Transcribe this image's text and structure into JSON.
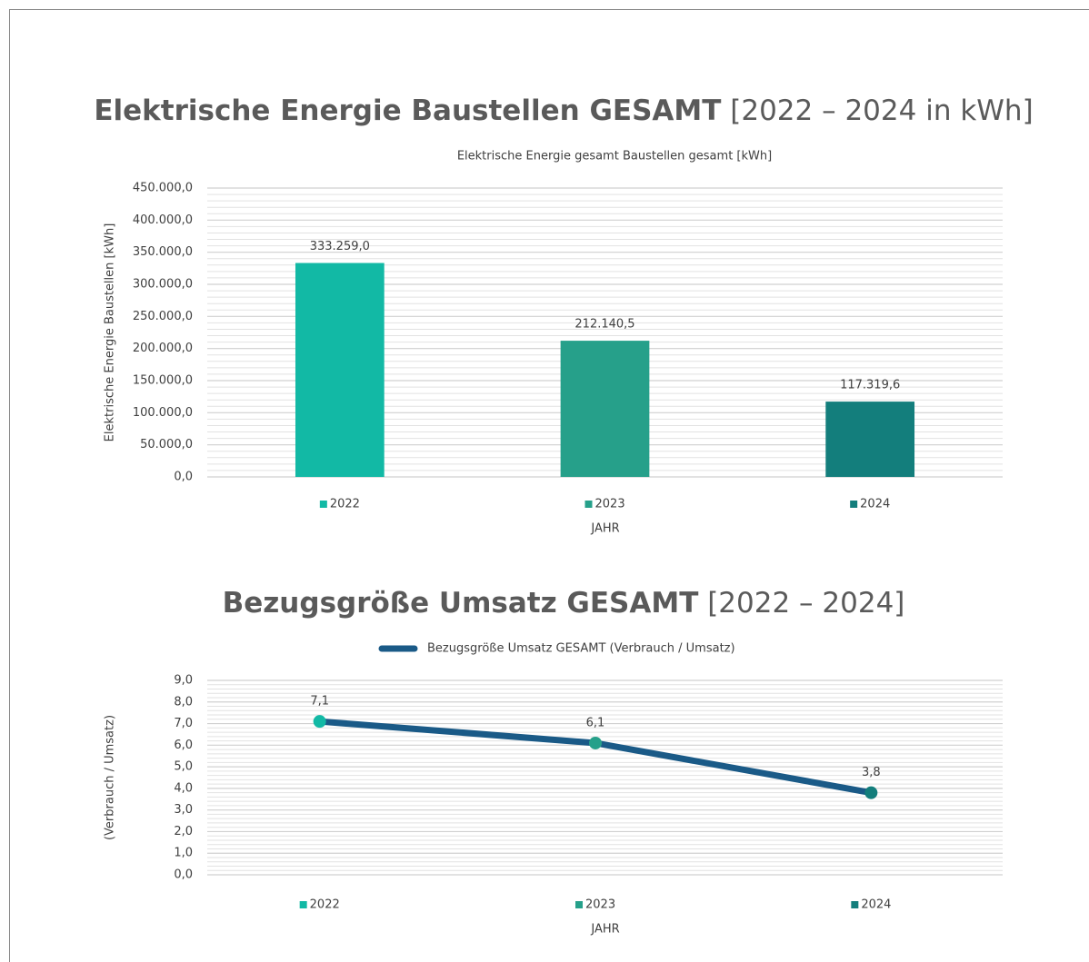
{
  "chart_data": [
    {
      "type": "bar",
      "title": "Elektrische Energie Baustellen GESAMT",
      "title_range": "[2022 – 2024 in kWh]",
      "subtitle": "Elektrische Energie gesamt Baustellen gesamt [kWh]",
      "ylabel": "Elektrische Energie Baustellen [kWh]",
      "xlabel": "JAHR",
      "categories": [
        "2022",
        "2023",
        "2024"
      ],
      "values": [
        333259.0,
        212140.5,
        117319.6
      ],
      "value_labels": [
        "333.259,0",
        "212.140,5",
        "117.319,6"
      ],
      "colors": [
        "#12b9a5",
        "#26a08a",
        "#137e7c"
      ],
      "ylim": [
        0,
        450000
      ],
      "yticks": [
        {
          "value": 0,
          "label": "0,0"
        },
        {
          "value": 50000,
          "label": "50.000,0"
        },
        {
          "value": 100000,
          "label": "100.000,0"
        },
        {
          "value": 150000,
          "label": "150.000,0"
        },
        {
          "value": 200000,
          "label": "200.000,0"
        },
        {
          "value": 250000,
          "label": "250.000,0"
        },
        {
          "value": 300000,
          "label": "300.000,0"
        },
        {
          "value": 350000,
          "label": "350.000,0"
        },
        {
          "value": 400000,
          "label": "400.000,0"
        },
        {
          "value": 450000,
          "label": "450.000,0"
        }
      ],
      "grid": true
    },
    {
      "type": "line",
      "title": "Bezugsgröße Umsatz GESAMT",
      "title_range": "[2022 – 2024]",
      "ylabel": "(Verbrauch / Umsatz)",
      "xlabel": "JAHR",
      "categories": [
        "2022",
        "2023",
        "2024"
      ],
      "colors": [
        "#12b9a5",
        "#26a08a",
        "#137e7c"
      ],
      "series": [
        {
          "name": "Bezugsgröße Umsatz GESAMT (Verbrauch / Umsatz)",
          "color": "#1a5a87",
          "values": [
            7.1,
            6.1,
            3.8
          ],
          "value_labels": [
            "7,1",
            "6,1",
            "3,8"
          ]
        }
      ],
      "ylim": [
        0,
        9
      ],
      "yticks": [
        {
          "value": 0,
          "label": "0,0"
        },
        {
          "value": 1,
          "label": "1,0"
        },
        {
          "value": 2,
          "label": "2,0"
        },
        {
          "value": 3,
          "label": "3,0"
        },
        {
          "value": 4,
          "label": "4,0"
        },
        {
          "value": 5,
          "label": "5,0"
        },
        {
          "value": 6,
          "label": "6,0"
        },
        {
          "value": 7,
          "label": "7,0"
        },
        {
          "value": 8,
          "label": "8,0"
        },
        {
          "value": 9,
          "label": "9,0"
        }
      ],
      "grid": true
    }
  ]
}
